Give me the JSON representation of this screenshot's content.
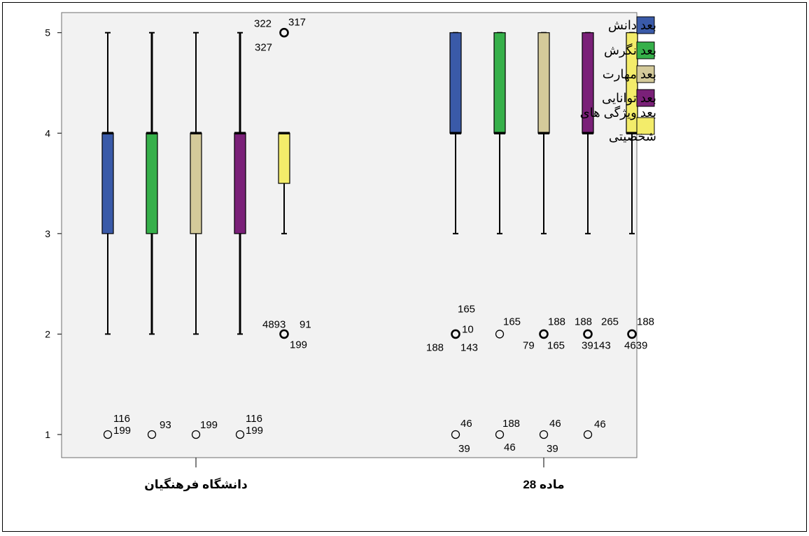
{
  "chart_data": {
    "type": "boxplot",
    "y_ticks": [
      1,
      2,
      3,
      4,
      5
    ],
    "ylim": [
      0.77,
      5.2
    ],
    "categories": [
      "دانشگاه فرهنگیان",
      "ماده 28"
    ],
    "legend_position": "right",
    "series": [
      {
        "name": "بعد دانش",
        "color": "#3a5aa8"
      },
      {
        "name": "بعد نگرش",
        "color": "#36b04a"
      },
      {
        "name": "بعد مهارت",
        "color": "#d4ca9a"
      },
      {
        "name": "بعد توانایی",
        "color": "#7a2078"
      },
      {
        "name": "بعد ویژگی های شخصیتی",
        "color": "#f3ec6a"
      }
    ],
    "boxes": [
      [
        {
          "min": 2,
          "q1": 3,
          "median": 4,
          "q3": 4,
          "max": 5
        },
        {
          "min": 2,
          "q1": 3,
          "median": 4,
          "q3": 4,
          "max": 5
        },
        {
          "min": 2,
          "q1": 3,
          "median": 4,
          "q3": 4,
          "max": 5
        },
        {
          "min": 2,
          "q1": 3,
          "median": 4,
          "q3": 4,
          "max": 5
        },
        {
          "min": 3,
          "q1": 3.5,
          "median": 4,
          "q3": 4,
          "max": 4
        }
      ],
      [
        {
          "min": 3,
          "q1": 4,
          "median": 4,
          "q3": 5,
          "max": 5
        },
        {
          "min": 3,
          "q1": 4,
          "median": 4,
          "q3": 5,
          "max": 5
        },
        {
          "min": 3,
          "q1": 4,
          "median": 4,
          "q3": 5,
          "max": 5
        },
        {
          "min": 3,
          "q1": 4,
          "median": 4,
          "q3": 5,
          "max": 5
        },
        {
          "min": 3,
          "q1": 4,
          "median": 4,
          "q3": 5,
          "max": 5
        }
      ]
    ],
    "outliers": [
      {
        "group": 0,
        "series": 0,
        "value": 1,
        "labels": [
          "116",
          "199"
        ]
      },
      {
        "group": 0,
        "series": 1,
        "value": 1,
        "labels": [
          "93"
        ]
      },
      {
        "group": 0,
        "series": 2,
        "value": 1,
        "labels": [
          "199"
        ]
      },
      {
        "group": 0,
        "series": 3,
        "value": 1,
        "labels": [
          "116",
          "199"
        ]
      },
      {
        "group": 0,
        "series": 4,
        "value": 5,
        "labels": [
          "322",
          "317",
          "327"
        ]
      },
      {
        "group": 0,
        "series": 4,
        "value": 2,
        "labels": [
          "4893",
          "91",
          "199"
        ]
      },
      {
        "group": 1,
        "series": 0,
        "value": 2,
        "labels": [
          "165",
          "10",
          "188",
          "143"
        ]
      },
      {
        "group": 1,
        "series": 0,
        "value": 1,
        "labels": [
          "46",
          "39"
        ]
      },
      {
        "group": 1,
        "series": 1,
        "value": 2,
        "labels": [
          "165"
        ]
      },
      {
        "group": 1,
        "series": 1,
        "value": 1,
        "labels": [
          "188",
          "46"
        ]
      },
      {
        "group": 1,
        "series": 2,
        "value": 2,
        "labels": [
          "188",
          "79",
          "165"
        ]
      },
      {
        "group": 1,
        "series": 2,
        "value": 1,
        "labels": [
          "46",
          "39"
        ]
      },
      {
        "group": 1,
        "series": 3,
        "value": 2,
        "labels": [
          "188",
          "39143"
        ]
      },
      {
        "group": 1,
        "series": 3,
        "value": 1,
        "labels": [
          "46"
        ]
      },
      {
        "group": 1,
        "series": 4,
        "value": 2,
        "labels": [
          "265",
          "188",
          "4639"
        ]
      }
    ]
  }
}
